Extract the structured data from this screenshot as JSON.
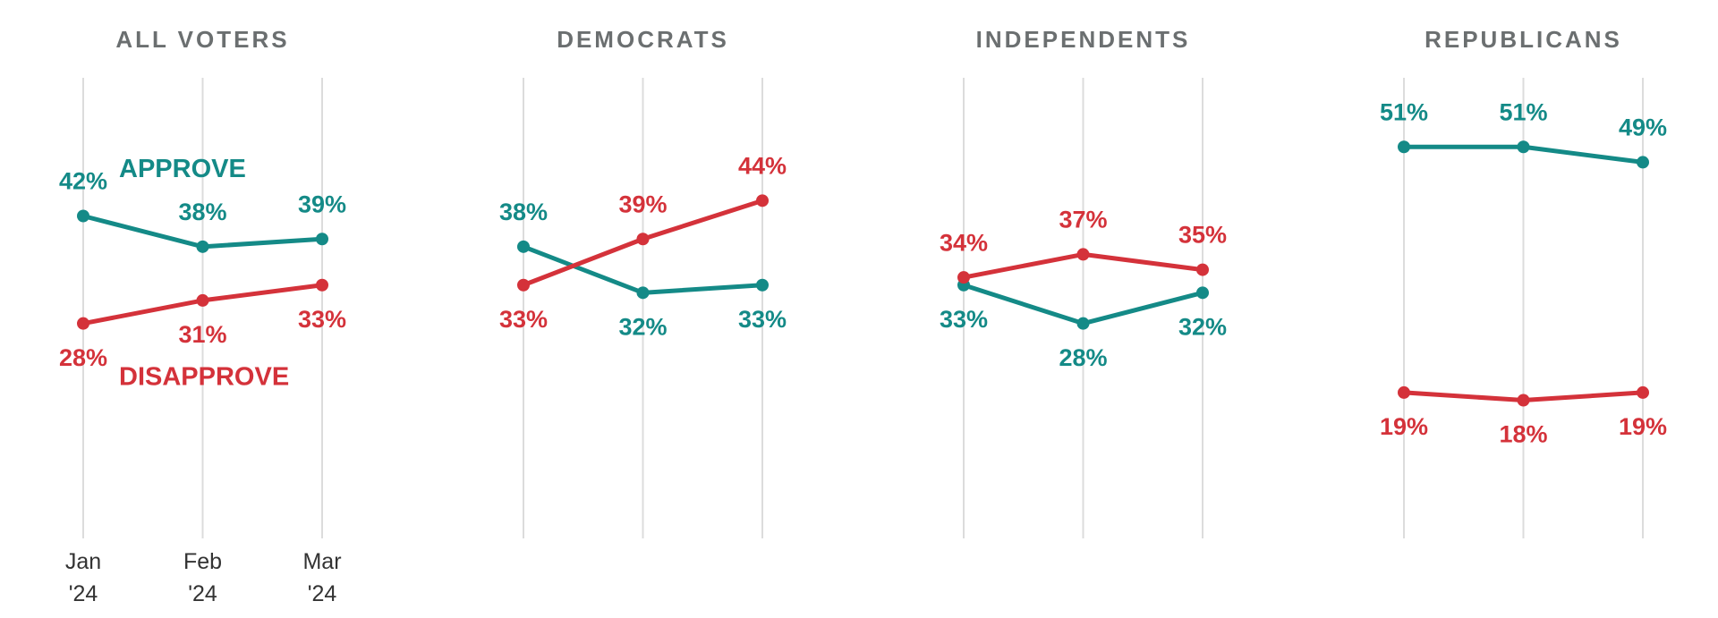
{
  "chart_data": [
    {
      "type": "line",
      "title": "ALL VOTERS",
      "categories": [
        "Jan\n'24",
        "Feb\n'24",
        "Mar\n'24"
      ],
      "ylim": [
        0,
        60
      ],
      "series": [
        {
          "name": "APPROVE",
          "color": "#148a87",
          "values": [
            42,
            38,
            39
          ],
          "value_labels": [
            "42%",
            "38%",
            "39%"
          ]
        },
        {
          "name": "DISAPPROVE",
          "color": "#d4323a",
          "values": [
            28,
            31,
            33
          ],
          "value_labels": [
            "28%",
            "31%",
            "33%"
          ]
        }
      ]
    },
    {
      "type": "line",
      "title": "DEMOCRATS",
      "ylim": [
        0,
        60
      ],
      "series": [
        {
          "color": "#148a87",
          "values": [
            38,
            32,
            33
          ],
          "value_labels": [
            "38%",
            "32%",
            "33%"
          ]
        },
        {
          "color": "#d4323a",
          "values": [
            33,
            39,
            44
          ],
          "value_labels": [
            "33%",
            "39%",
            "44%"
          ]
        }
      ]
    },
    {
      "type": "line",
      "title": "INDEPENDENTS",
      "ylim": [
        0,
        60
      ],
      "series": [
        {
          "color": "#148a87",
          "values": [
            33,
            28,
            32
          ],
          "value_labels": [
            "33%",
            "28%",
            "32%"
          ]
        },
        {
          "color": "#d4323a",
          "values": [
            34,
            37,
            35
          ],
          "value_labels": [
            "34%",
            "37%",
            "35%"
          ]
        }
      ]
    },
    {
      "type": "line",
      "title": "REPUBLICANS",
      "ylim": [
        0,
        60
      ],
      "series": [
        {
          "color": "#148a87",
          "values": [
            51,
            51,
            49
          ],
          "value_labels": [
            "51%",
            "51%",
            "49%"
          ]
        },
        {
          "color": "#d4323a",
          "values": [
            19,
            18,
            19
          ],
          "value_labels": [
            "19%",
            "18%",
            "19%"
          ]
        }
      ]
    }
  ]
}
